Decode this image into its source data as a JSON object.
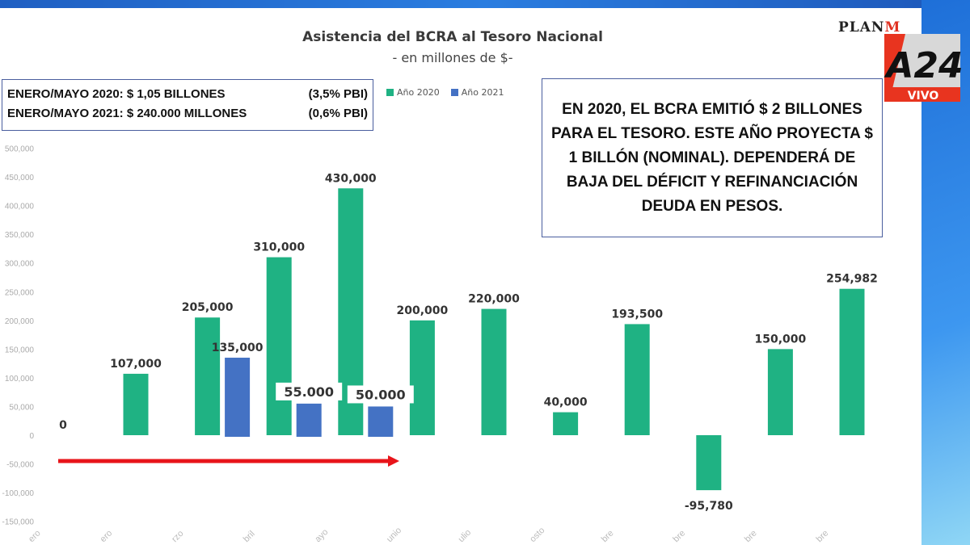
{
  "chart_data": {
    "type": "bar",
    "title": "Asistencia del BCRA al Tesoro Nacional",
    "subtitle": "- en millones de $-",
    "categories": [
      "ero",
      "ero",
      "rzo",
      "bril",
      "ayo",
      "unio",
      "ulio",
      "osto",
      "bre",
      "bre",
      "bre",
      "bre"
    ],
    "series": [
      {
        "name": "Año 2020",
        "color": "#1fb283",
        "values": [
          0,
          107000,
          205000,
          310000,
          430000,
          200000,
          220000,
          40000,
          193500,
          -95780,
          150000,
          254982
        ],
        "labels": [
          "0",
          "107,000",
          "205,000",
          "310,000",
          "430,000",
          "200,000",
          "220,000",
          "40,000",
          "193,500",
          "-95,780",
          "150,000",
          "254,982"
        ]
      },
      {
        "name": "Año 2021",
        "color": "#4472c4",
        "values": [
          null,
          null,
          135000,
          55000,
          50000,
          null,
          null,
          null,
          null,
          null,
          null,
          null
        ],
        "labels": [
          "",
          "",
          "135,000",
          "55.000",
          "50.000",
          "",
          "",
          "",
          "",
          "",
          "",
          ""
        ]
      }
    ],
    "yticks": [
      "500,000",
      "450,000",
      "400,000",
      "350,000",
      "300,000",
      "250,000",
      "200,000",
      "150,000",
      "100,000",
      "50,000",
      "0",
      "-50,000",
      "-100,000",
      "-150,000"
    ],
    "ylim": [
      -150000,
      500000
    ],
    "legend_position": "top",
    "grid": false,
    "annotation_arrow_color": "#e8141a"
  },
  "summary": {
    "rows": [
      {
        "text": "ENERO/MAYO  2020: $ 1,05 BILLONES",
        "pbi": "(3,5% PBI)"
      },
      {
        "text": "ENERO/MAYO  2021: $ 240.000 MILLONES",
        "pbi": "(0,6% PBI)"
      }
    ]
  },
  "note": "EN 2020, EL BCRA EMITIÓ $ 2 BILLONES PARA EL TESORO. ESTE AÑO PROYECTA $ 1 BILLÓN (NOMINAL). DEPENDERÁ DE BAJA DEL DÉFICIT Y REFINANCIACIÓN DEUDA EN PESOS.",
  "logos": {
    "planm": "PLANM",
    "channel": "A24",
    "live": "VIVO"
  }
}
